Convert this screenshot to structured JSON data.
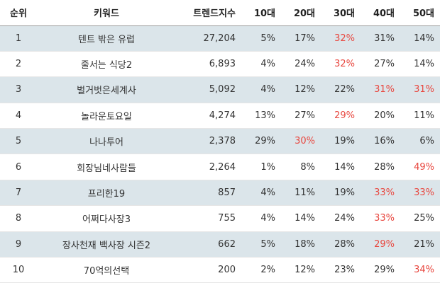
{
  "table": {
    "columns": [
      "순위",
      "키워드",
      "트렌드지수",
      "10대",
      "20대",
      "30대",
      "40대",
      "50대"
    ],
    "highlight_color": "#e8473f",
    "rows": [
      {
        "rank": "1",
        "keyword": "텐트 밖은 유럽",
        "trend": "27,204",
        "ages": [
          "5%",
          "17%",
          "32%",
          "31%",
          "14%"
        ],
        "highlight": [
          2
        ]
      },
      {
        "rank": "2",
        "keyword": "줄서는 식당2",
        "trend": "6,893",
        "ages": [
          "4%",
          "24%",
          "32%",
          "27%",
          "14%"
        ],
        "highlight": [
          2
        ]
      },
      {
        "rank": "3",
        "keyword": "벌거벗은세계사",
        "trend": "5,092",
        "ages": [
          "4%",
          "12%",
          "22%",
          "31%",
          "31%"
        ],
        "highlight": [
          3,
          4
        ]
      },
      {
        "rank": "4",
        "keyword": "놀라운토요일",
        "trend": "4,274",
        "ages": [
          "13%",
          "27%",
          "29%",
          "20%",
          "11%"
        ],
        "highlight": [
          2
        ]
      },
      {
        "rank": "5",
        "keyword": "나나투어",
        "trend": "2,378",
        "ages": [
          "29%",
          "30%",
          "19%",
          "16%",
          "6%"
        ],
        "highlight": [
          1
        ]
      },
      {
        "rank": "6",
        "keyword": "회장님네사람들",
        "trend": "2,264",
        "ages": [
          "1%",
          "8%",
          "14%",
          "28%",
          "49%"
        ],
        "highlight": [
          4
        ]
      },
      {
        "rank": "7",
        "keyword": "프리한19",
        "trend": "857",
        "ages": [
          "4%",
          "11%",
          "19%",
          "33%",
          "33%"
        ],
        "highlight": [
          3,
          4
        ]
      },
      {
        "rank": "8",
        "keyword": "어쩌다사장3",
        "trend": "755",
        "ages": [
          "4%",
          "14%",
          "24%",
          "33%",
          "25%"
        ],
        "highlight": [
          3
        ]
      },
      {
        "rank": "9",
        "keyword": "장사천재 백사장 시즌2",
        "trend": "662",
        "ages": [
          "5%",
          "18%",
          "28%",
          "29%",
          "21%"
        ],
        "highlight": [
          3
        ]
      },
      {
        "rank": "10",
        "keyword": "70억의선택",
        "trend": "200",
        "ages": [
          "2%",
          "12%",
          "23%",
          "29%",
          "34%"
        ],
        "highlight": [
          4
        ]
      }
    ]
  }
}
